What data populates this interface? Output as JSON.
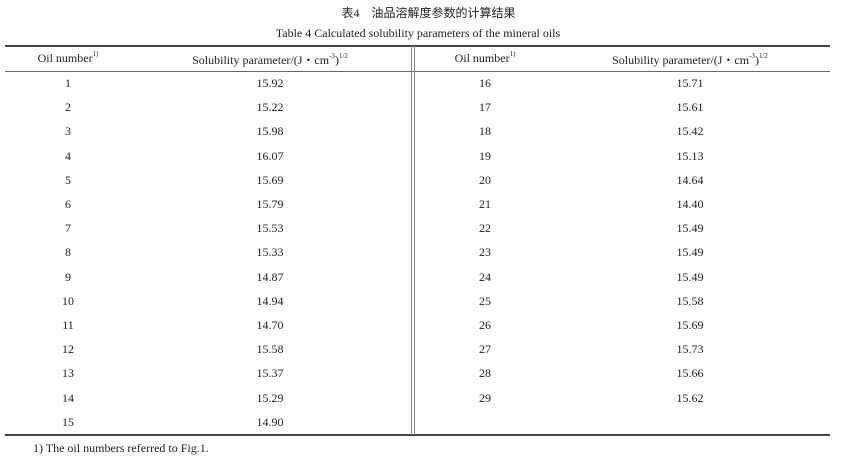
{
  "caption": {
    "chinese": "表4　油品溶解度参数的计算结果",
    "english": "Table 4    Calculated solubility parameters of the mineral oils"
  },
  "table": {
    "headers": {
      "oil_number": "Oil number",
      "oil_number_sup": "1)",
      "solubility": "Solubility parameter/(J・cm",
      "solubility_exp": "-3",
      "solubility_close": ")",
      "solubility_sup": "1/2"
    },
    "left_rows": [
      {
        "oil": "1",
        "value": "15.92"
      },
      {
        "oil": "2",
        "value": "15.22"
      },
      {
        "oil": "3",
        "value": "15.98"
      },
      {
        "oil": "4",
        "value": "16.07"
      },
      {
        "oil": "5",
        "value": "15.69"
      },
      {
        "oil": "6",
        "value": "15.79"
      },
      {
        "oil": "7",
        "value": "15.53"
      },
      {
        "oil": "8",
        "value": "15.33"
      },
      {
        "oil": "9",
        "value": "14.87"
      },
      {
        "oil": "10",
        "value": "14.94"
      },
      {
        "oil": "11",
        "value": "14.70"
      },
      {
        "oil": "12",
        "value": "15.58"
      },
      {
        "oil": "13",
        "value": "15.37"
      },
      {
        "oil": "14",
        "value": "15.29"
      },
      {
        "oil": "15",
        "value": "14.90"
      }
    ],
    "right_rows": [
      {
        "oil": "16",
        "value": "15.71"
      },
      {
        "oil": "17",
        "value": "15.61"
      },
      {
        "oil": "18",
        "value": "15.42"
      },
      {
        "oil": "19",
        "value": "15.13"
      },
      {
        "oil": "20",
        "value": "14.64"
      },
      {
        "oil": "21",
        "value": "14.40"
      },
      {
        "oil": "22",
        "value": "15.49"
      },
      {
        "oil": "23",
        "value": "15.49"
      },
      {
        "oil": "24",
        "value": "15.49"
      },
      {
        "oil": "25",
        "value": "15.58"
      },
      {
        "oil": "26",
        "value": "15.69"
      },
      {
        "oil": "27",
        "value": "15.73"
      },
      {
        "oil": "28",
        "value": "15.66"
      },
      {
        "oil": "29",
        "value": "15.62"
      }
    ]
  },
  "footnote": "1)   The oil numbers referred to Fig.1."
}
